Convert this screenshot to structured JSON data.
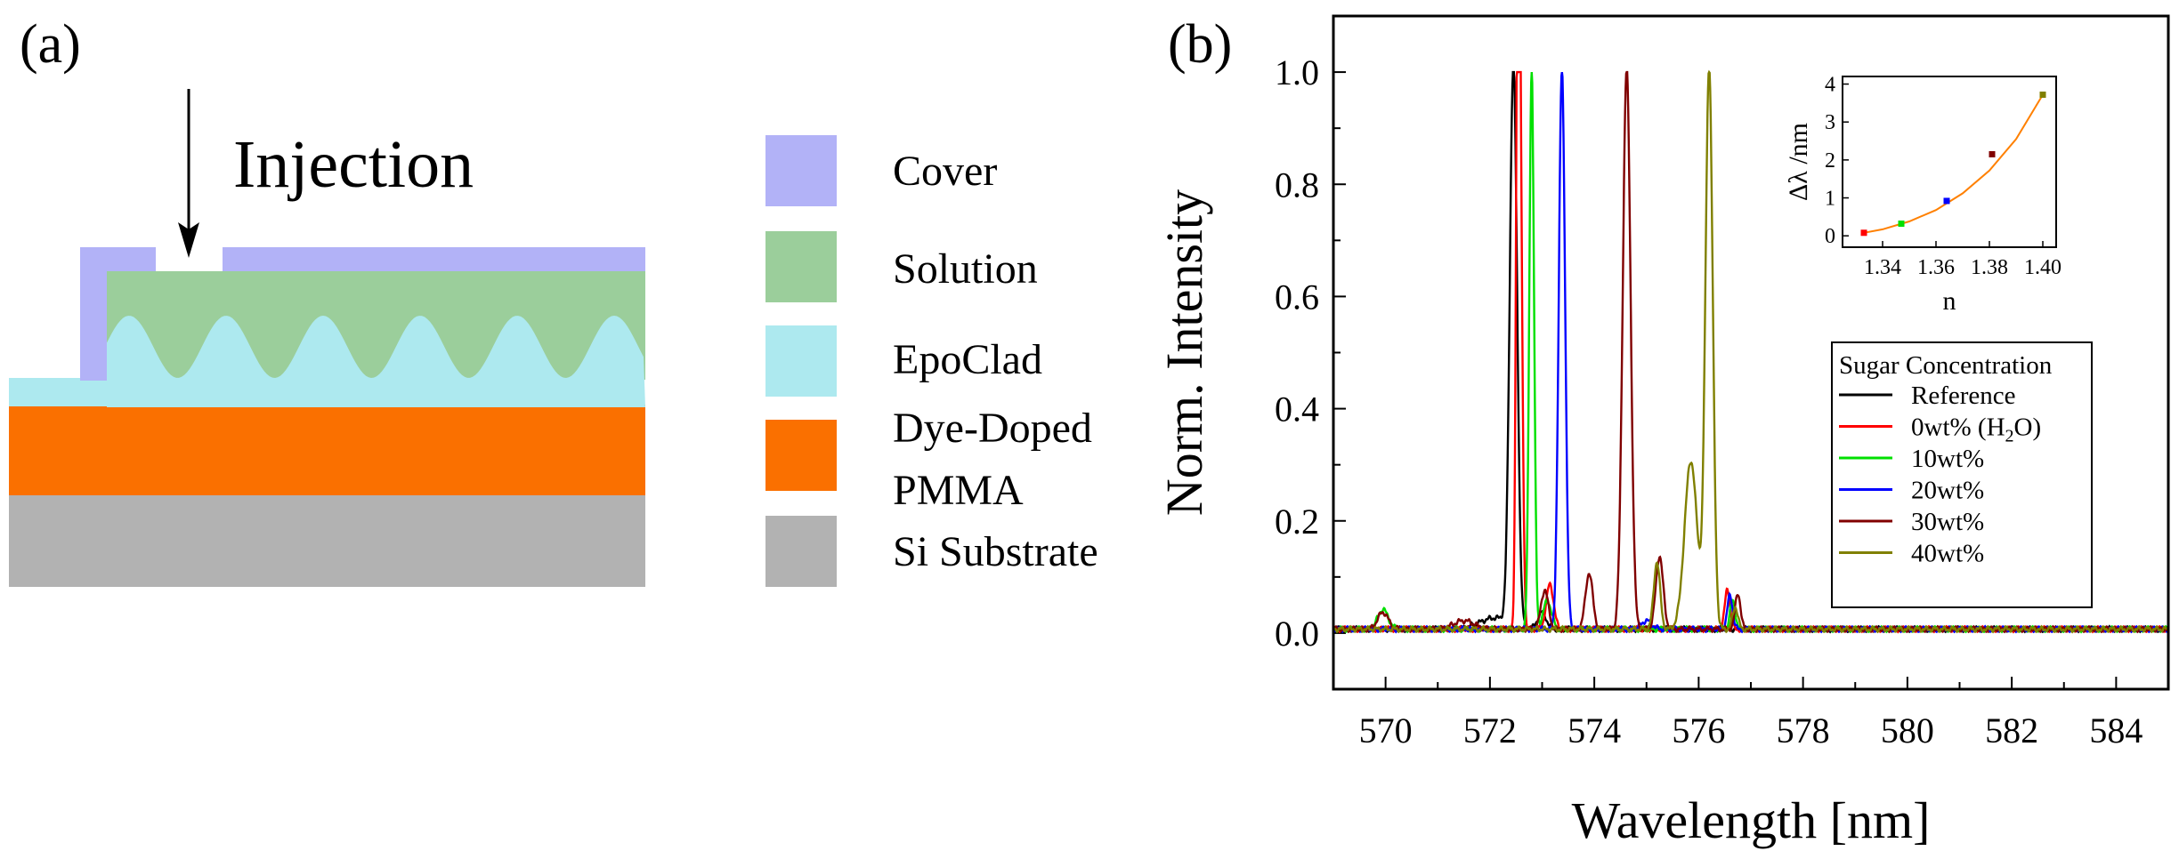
{
  "panel_a": {
    "label": "(a)",
    "injection_label": "Injection",
    "legend": [
      {
        "label": "Cover",
        "color": "#b2b2f7"
      },
      {
        "label": "Solution",
        "color": "#9bce9b"
      },
      {
        "label": "EpoClad",
        "color": "#ade9ef"
      },
      {
        "label": "Dye-Doped",
        "label2": "PMMA",
        "color": "#fa7000"
      },
      {
        "label": "Si Substrate",
        "color": "#b2b2b2"
      }
    ]
  },
  "chart_data": [
    {
      "type": "line",
      "panel_label": "(b)",
      "xlabel": "Wavelength [nm]",
      "ylabel": "Norm. Intensity",
      "xlim": [
        569,
        585
      ],
      "ylim": [
        -0.1,
        1.1
      ],
      "xticks": [
        570,
        572,
        574,
        576,
        578,
        580,
        582,
        584
      ],
      "yticks": [
        0.0,
        0.2,
        0.4,
        0.6,
        0.8,
        1.0
      ],
      "ytick_labels": [
        "0.0",
        "0.2",
        "0.4",
        "0.6",
        "0.8",
        "1.0"
      ],
      "legend_title": "Sugar Concentration",
      "legend_position": "right",
      "baseline": 0.007,
      "series": [
        {
          "name": "Reference",
          "color": "#000000",
          "peaks": [
            [
              572.45,
              1.0,
              0.07
            ],
            [
              572.1,
              0.02,
              0.3
            ],
            [
              573.0,
              0.03,
              0.08
            ]
          ]
        },
        {
          "name": "0wt% (H",
          "sub": "2",
          "name_suffix": "O)",
          "color": "#ff0000",
          "peaks": [
            [
              572.57,
              1.0,
              0.045
            ],
            [
              572.53,
              0.72,
              0.03
            ],
            [
              573.15,
              0.08,
              0.07
            ],
            [
              576.55,
              0.07,
              0.05
            ]
          ]
        },
        {
          "name": "10wt%",
          "color": "#00e000",
          "peaks": [
            [
              572.8,
              1.0,
              0.045
            ],
            [
              569.95,
              0.035,
              0.1
            ],
            [
              573.1,
              0.05,
              0.08
            ],
            [
              576.65,
              0.05,
              0.05
            ]
          ]
        },
        {
          "name": "20wt%",
          "color": "#0000ff",
          "peaks": [
            [
              573.38,
              1.0,
              0.06
            ],
            [
              576.6,
              0.06,
              0.05
            ],
            [
              575.0,
              0.015,
              0.1
            ]
          ]
        },
        {
          "name": "30wt%",
          "color": "#800000",
          "peaks": [
            [
              574.62,
              1.0,
              0.075
            ],
            [
              573.9,
              0.1,
              0.07
            ],
            [
              575.25,
              0.13,
              0.07
            ],
            [
              576.75,
              0.065,
              0.05
            ],
            [
              573.05,
              0.07,
              0.07
            ],
            [
              569.95,
              0.03,
              0.1
            ],
            [
              571.5,
              0.015,
              0.2
            ]
          ]
        },
        {
          "name": "40wt%",
          "color": "#808000",
          "peaks": [
            [
              576.2,
              1.0,
              0.07
            ],
            [
              575.85,
              0.3,
              0.12
            ],
            [
              575.2,
              0.12,
              0.06
            ],
            [
              576.7,
              0.04,
              0.05
            ]
          ]
        }
      ]
    },
    {
      "type": "scatter",
      "title": "inset",
      "xlabel": "n",
      "ylabel": "Δλ /nm",
      "xlim": [
        1.325,
        1.405
      ],
      "ylim": [
        -0.3,
        4.2
      ],
      "xticks": [
        1.34,
        1.36,
        1.38,
        1.4
      ],
      "xtick_labels": [
        "1.34",
        "1.36",
        "1.38",
        "1.40"
      ],
      "yticks": [
        0,
        1,
        2,
        3,
        4
      ],
      "points": [
        {
          "x": 1.333,
          "y": 0.08,
          "color": "#ff0000"
        },
        {
          "x": 1.347,
          "y": 0.32,
          "color": "#00e000"
        },
        {
          "x": 1.364,
          "y": 0.92,
          "color": "#0000ff"
        },
        {
          "x": 1.381,
          "y": 2.15,
          "color": "#800000"
        },
        {
          "x": 1.4,
          "y": 3.72,
          "color": "#808000"
        }
      ],
      "fit_color": "#ff8000",
      "fit": [
        [
          1.333,
          0.08
        ],
        [
          1.34,
          0.17
        ],
        [
          1.35,
          0.38
        ],
        [
          1.36,
          0.68
        ],
        [
          1.37,
          1.12
        ],
        [
          1.38,
          1.72
        ],
        [
          1.39,
          2.55
        ],
        [
          1.4,
          3.72
        ]
      ]
    }
  ]
}
